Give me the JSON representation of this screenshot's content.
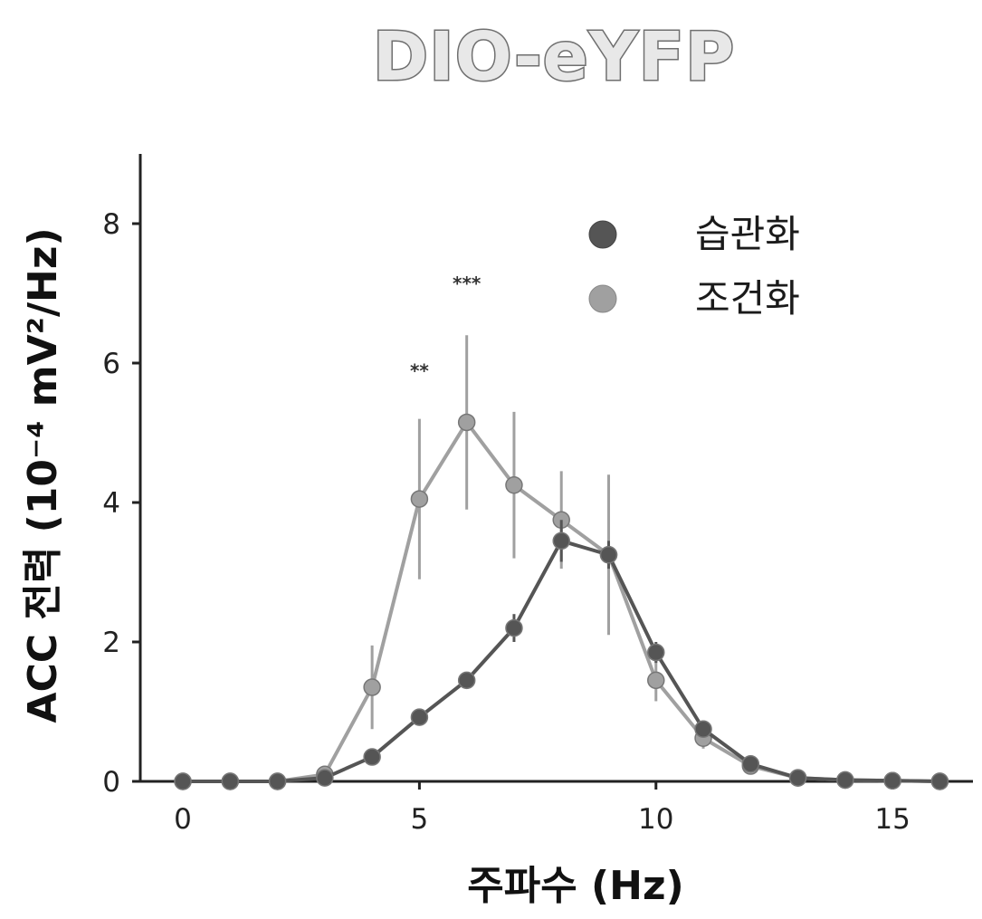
{
  "chart_data": {
    "type": "line",
    "title": "DIO-eYFP",
    "xlabel": "주파수 (Hz)",
    "ylabel": "ACC 전력 (10⁻⁴ mV²/Hz)",
    "xlim": [
      -0.9,
      16.7
    ],
    "ylim": [
      0,
      9
    ],
    "xticks": [
      0,
      5,
      10,
      15
    ],
    "yticks": [
      0,
      2,
      4,
      6,
      8
    ],
    "legend_position": "top-right",
    "series": [
      {
        "name": "습관화",
        "color": "#555555",
        "x": [
          0,
          1,
          2,
          3,
          4,
          5,
          6,
          7,
          8,
          9,
          10,
          11,
          12,
          13,
          14,
          15,
          16
        ],
        "y": [
          0,
          0,
          0,
          0.05,
          0.35,
          0.92,
          1.45,
          2.2,
          3.45,
          3.25,
          1.85,
          0.75,
          0.25,
          0.05,
          0.02,
          0.01,
          0
        ],
        "err": [
          0,
          0,
          0,
          0.02,
          0.05,
          0.08,
          0.12,
          0.2,
          0.3,
          0.2,
          0.15,
          0.08,
          0.04,
          0.02,
          0,
          0,
          0
        ]
      },
      {
        "name": "조건화",
        "color": "#a0a0a0",
        "x": [
          0,
          1,
          2,
          3,
          4,
          5,
          6,
          7,
          8,
          9,
          10,
          11,
          12,
          13,
          14,
          15,
          16
        ],
        "y": [
          0,
          0,
          0,
          0.1,
          1.35,
          4.05,
          5.15,
          4.25,
          3.75,
          3.25,
          1.45,
          0.62,
          0.22,
          0.05,
          0.02,
          0.01,
          0
        ],
        "err": [
          0,
          0,
          0,
          0.05,
          0.6,
          1.15,
          1.25,
          1.05,
          0.7,
          1.15,
          0.3,
          0.15,
          0.05,
          0.02,
          0,
          0,
          0
        ]
      }
    ],
    "annotations": [
      {
        "text": "**",
        "x": 5,
        "y": 5.8
      },
      {
        "text": "***",
        "x": 6,
        "y": 7.05
      }
    ]
  }
}
